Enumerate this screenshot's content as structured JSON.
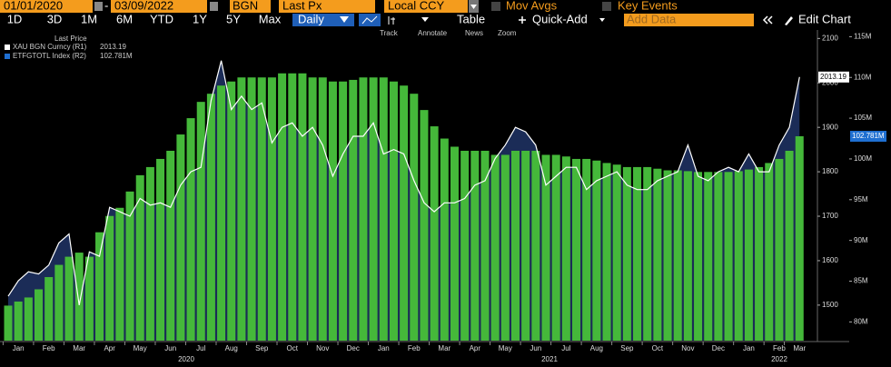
{
  "toolbar": {
    "start_date": "01/01/2020",
    "separator": "-",
    "end_date": "03/09/2022",
    "pricing_source": "BGN",
    "field": "Last Px",
    "currency": "Local CCY",
    "mov_avgs": "Mov Avgs",
    "key_events": "Key Events",
    "periods": [
      "1D",
      "3D",
      "1M",
      "6M",
      "YTD",
      "1Y",
      "5Y",
      "Max"
    ],
    "frequency": "Daily",
    "table": "Table",
    "quick_add": "Quick-Add",
    "add_data": "Add Data",
    "edit_chart": "Edit Chart",
    "tools": [
      "Track",
      "Annotate",
      "News",
      "Zoom"
    ]
  },
  "chart_data": {
    "type": "bar-line",
    "legend_title": "Last Price",
    "categories": [
      null,
      "Jan",
      null,
      null,
      "Feb",
      null,
      null,
      "Mar",
      null,
      null,
      "Apr",
      null,
      null,
      "May",
      null,
      null,
      "Jun",
      null,
      null,
      "Jul",
      null,
      null,
      "Aug",
      null,
      null,
      "Sep",
      null,
      null,
      "Oct",
      null,
      null,
      "Nov",
      null,
      null,
      "Dec",
      null,
      null,
      "Jan",
      null,
      null,
      "Feb",
      null,
      null,
      "Mar",
      null,
      null,
      "Apr",
      null,
      null,
      "May",
      null,
      null,
      "Jun",
      null,
      null,
      "Jul",
      null,
      null,
      "Aug",
      null,
      null,
      "Sep",
      null,
      null,
      "Oct",
      null,
      null,
      "Nov",
      null,
      null,
      "Dec",
      null,
      null,
      "Jan",
      null,
      null,
      "Feb",
      null,
      "Mar"
    ],
    "year_labels": [
      "2020",
      "2021",
      "2022"
    ],
    "series": [
      {
        "name": "XAU BGN Curncy (R1)",
        "last_label": "2013.19",
        "color": "#ffffff",
        "area_color": "#1b2c57",
        "axis": "y",
        "values": [
          1520,
          1555,
          1575,
          1570,
          1590,
          1640,
          1660,
          1500,
          1620,
          1610,
          1720,
          1710,
          1700,
          1740,
          1725,
          1730,
          1720,
          1770,
          1800,
          1810,
          1960,
          2050,
          1940,
          1970,
          1940,
          1955,
          1865,
          1900,
          1910,
          1880,
          1900,
          1860,
          1790,
          1840,
          1880,
          1880,
          1910,
          1840,
          1850,
          1840,
          1780,
          1730,
          1710,
          1730,
          1730,
          1740,
          1770,
          1780,
          1830,
          1860,
          1900,
          1890,
          1860,
          1770,
          1790,
          1810,
          1810,
          1760,
          1780,
          1790,
          1800,
          1770,
          1760,
          1760,
          1780,
          1790,
          1800,
          1860,
          1790,
          1780,
          1800,
          1810,
          1800,
          1840,
          1800,
          1800,
          1860,
          1900,
          2013.19
        ]
      },
      {
        "name": "ETFGTOTL Index (R2)",
        "last_label": "102.781M",
        "color": "#45b83a",
        "tag_color": "#1f6fd1",
        "axis": "y2",
        "values": [
          82000000,
          82500000,
          83000000,
          84000000,
          85500000,
          87000000,
          88000000,
          88500000,
          88000000,
          91000000,
          93000000,
          94000000,
          96000000,
          98000000,
          99000000,
          100000000,
          101000000,
          103000000,
          105000000,
          107000000,
          108000000,
          109000000,
          109500000,
          110000000,
          110000000,
          110000000,
          110000000,
          110500000,
          110500000,
          110500000,
          110000000,
          110000000,
          109500000,
          109500000,
          109700000,
          110000000,
          110000000,
          110000000,
          109500000,
          109000000,
          108000000,
          106000000,
          104000000,
          102500000,
          101500000,
          101000000,
          101000000,
          101000000,
          100500000,
          100500000,
          101000000,
          101000000,
          101000000,
          100500000,
          100500000,
          100300000,
          100000000,
          100000000,
          99800000,
          99500000,
          99300000,
          99000000,
          99000000,
          99000000,
          98800000,
          98600000,
          98600000,
          98500000,
          98400000,
          98400000,
          98400000,
          98400000,
          98500000,
          98700000,
          99000000,
          99500000,
          100000000,
          101000000,
          102781000
        ]
      }
    ],
    "ylim": [
      1420,
      2115
    ],
    "yticks": [
      1500,
      1600,
      1700,
      1800,
      1900,
      2000,
      2100
    ],
    "y2lim": [
      77700000,
      115600000
    ],
    "y2ticks": [
      {
        "value": 80000000,
        "label": "80M"
      },
      {
        "value": 85000000,
        "label": "85M"
      },
      {
        "value": 90000000,
        "label": "90M"
      },
      {
        "value": 95000000,
        "label": "95M"
      },
      {
        "value": 100000000,
        "label": "100M"
      },
      {
        "value": 105000000,
        "label": "105M"
      },
      {
        "value": 110000000,
        "label": "110M"
      },
      {
        "value": 115000000,
        "label": "115M"
      }
    ],
    "grid": false
  }
}
